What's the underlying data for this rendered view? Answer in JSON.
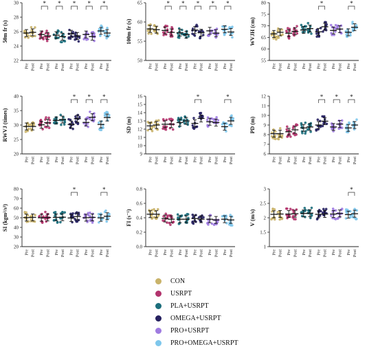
{
  "groups": [
    {
      "name": "CON",
      "color": "#C9B36A"
    },
    {
      "name": "USRPT",
      "color": "#B2346D"
    },
    {
      "name": "PLA+USRPT",
      "color": "#1C6E7C"
    },
    {
      "name": "OMEGA+USRPT",
      "color": "#262160"
    },
    {
      "name": "PRO+USRPT",
      "color": "#9F7BE0"
    },
    {
      "name": "PRO+OMEGA+USRPT",
      "color": "#7EC7EC"
    }
  ],
  "tick_pre": "Pre",
  "tick_post": "Post",
  "chart_data": [
    {
      "type": "scatter",
      "ylabel": "50m fr (s)",
      "ylim": [
        22,
        30
      ],
      "yticks": [
        22,
        24,
        26,
        28,
        30
      ],
      "means": [
        [
          25.8,
          25.9
        ],
        [
          25.6,
          25.4
        ],
        [
          25.5,
          25.3
        ],
        [
          25.7,
          25.4
        ],
        [
          25.6,
          25.3
        ],
        [
          26.1,
          25.8
        ]
      ],
      "sig": [
        false,
        true,
        true,
        true,
        true,
        true
      ]
    },
    {
      "type": "scatter",
      "ylabel": "100m fr (s)",
      "ylim": [
        50,
        65
      ],
      "yticks": [
        50,
        55,
        60,
        65
      ],
      "means": [
        [
          58.2,
          58.0
        ],
        [
          57.8,
          57.3
        ],
        [
          57.2,
          56.7
        ],
        [
          57.9,
          57.2
        ],
        [
          57.7,
          57.1
        ],
        [
          58.1,
          57.4
        ]
      ],
      "sig": [
        false,
        true,
        true,
        true,
        true,
        true
      ]
    },
    {
      "type": "scatter",
      "ylabel": "WVJH (cm)",
      "ylim": [
        55,
        80
      ],
      "yticks": [
        55,
        60,
        65,
        70,
        75,
        80
      ],
      "means": [
        [
          66.5,
          67.2
        ],
        [
          66.8,
          67.6
        ],
        [
          68.2,
          68.8
        ],
        [
          67.4,
          69.6
        ],
        [
          68.0,
          68.6
        ],
        [
          67.2,
          69.4
        ]
      ],
      "sig": [
        false,
        false,
        false,
        true,
        false,
        true
      ]
    },
    {
      "type": "scatter",
      "ylabel": "RWVJ (times)",
      "ylim": [
        20,
        40
      ],
      "yticks": [
        20,
        25,
        30,
        35,
        40
      ],
      "means": [
        [
          29.5,
          29.5
        ],
        [
          30.1,
          30.8
        ],
        [
          31.6,
          31.9
        ],
        [
          30.2,
          32.2
        ],
        [
          30.9,
          32.7
        ],
        [
          30.2,
          32.6
        ]
      ],
      "sig": [
        false,
        false,
        false,
        true,
        true,
        true
      ]
    },
    {
      "type": "scatter",
      "ylabel": "SD (m)",
      "ylim": [
        9,
        16
      ],
      "yticks": [
        9,
        10,
        11,
        12,
        13,
        14,
        15,
        16
      ],
      "means": [
        [
          12.4,
          12.5
        ],
        [
          12.6,
          12.6
        ],
        [
          12.8,
          13.0
        ],
        [
          12.7,
          13.3
        ],
        [
          12.9,
          12.8
        ],
        [
          12.3,
          13.0
        ]
      ],
      "sig": [
        false,
        false,
        false,
        true,
        false,
        true
      ]
    },
    {
      "type": "scatter",
      "ylabel": "PD (m)",
      "ylim": [
        6,
        12
      ],
      "yticks": [
        6,
        7,
        8,
        9,
        10,
        11,
        12
      ],
      "means": [
        [
          8.1,
          8.1
        ],
        [
          8.3,
          8.5
        ],
        [
          8.7,
          8.8
        ],
        [
          9.0,
          9.4
        ],
        [
          8.8,
          9.1
        ],
        [
          8.7,
          9.0
        ]
      ],
      "sig": [
        false,
        false,
        false,
        true,
        true,
        true
      ]
    },
    {
      "type": "scatter",
      "ylabel": "SI (kgm²/s³)",
      "ylim": [
        20,
        80
      ],
      "yticks": [
        20,
        30,
        40,
        50,
        60,
        70,
        80
      ],
      "means": [
        [
          50.2,
          50.4
        ],
        [
          50.0,
          50.3
        ],
        [
          50.4,
          50.6
        ],
        [
          49.8,
          51.3
        ],
        [
          50.1,
          50.4
        ],
        [
          49.9,
          51.6
        ]
      ],
      "sig": [
        false,
        false,
        false,
        true,
        false,
        true
      ]
    },
    {
      "type": "scatter",
      "ylabel": "FI (s⁻¹)",
      "ylim": [
        0,
        0.8
      ],
      "yticks": [
        0,
        0.2,
        0.4,
        0.6,
        0.8
      ],
      "means": [
        [
          0.45,
          0.45
        ],
        [
          0.39,
          0.38
        ],
        [
          0.38,
          0.38
        ],
        [
          0.39,
          0.38
        ],
        [
          0.38,
          0.37
        ],
        [
          0.38,
          0.37
        ]
      ],
      "sig": [
        false,
        false,
        false,
        false,
        false,
        false
      ]
    },
    {
      "type": "scatter",
      "ylabel": "V (m/s)",
      "ylim": [
        1.0,
        3.0
      ],
      "yticks": [
        1.0,
        1.5,
        2.0,
        2.5,
        3.0
      ],
      "means": [
        [
          2.12,
          2.13
        ],
        [
          2.13,
          2.14
        ],
        [
          2.15,
          2.16
        ],
        [
          2.12,
          2.13
        ],
        [
          2.13,
          2.15
        ],
        [
          2.11,
          2.14
        ]
      ],
      "sig": [
        false,
        false,
        false,
        false,
        false,
        true
      ]
    }
  ]
}
